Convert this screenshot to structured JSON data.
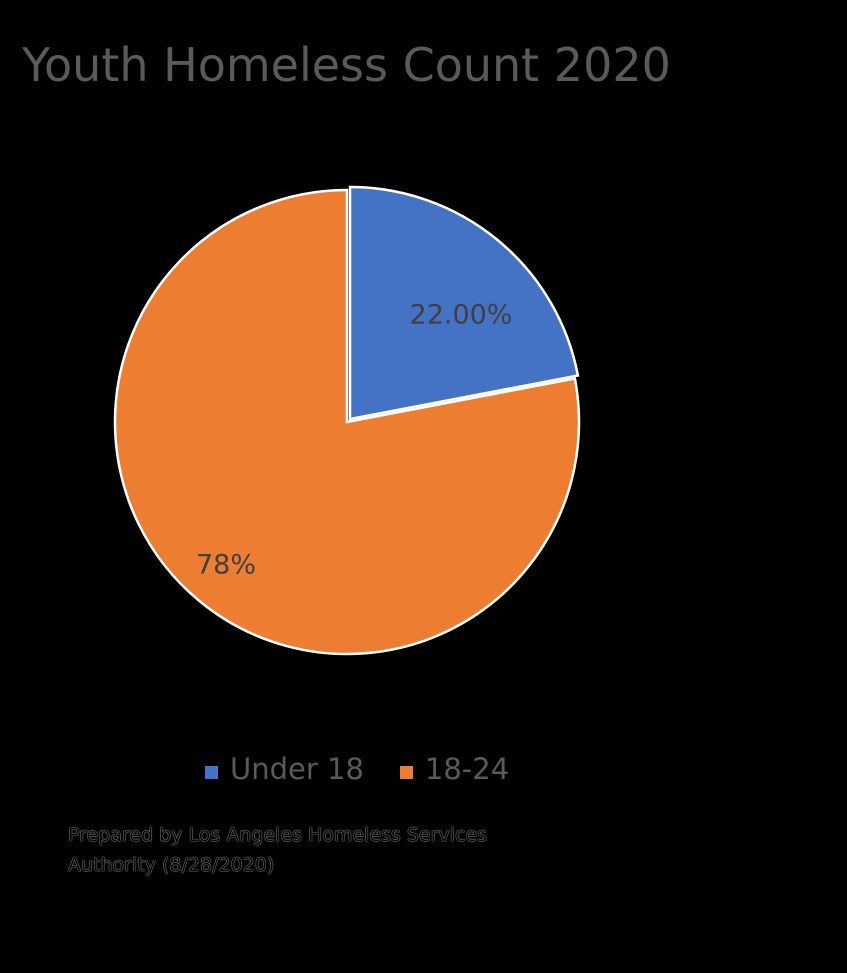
{
  "title": "Youth Homeless Count 2020",
  "chart_data": {
    "type": "pie",
    "categories": [
      "Under 18",
      "18-24"
    ],
    "values": [
      22.0,
      78.0
    ],
    "data_labels": [
      "22.00%",
      "78%"
    ],
    "colors": [
      "#4472C4",
      "#ED7D31"
    ],
    "legend_placement": "bottom",
    "title": "Youth Homeless Count 2020"
  },
  "legend": {
    "items": [
      {
        "label": "Under 18",
        "color": "#4472C4"
      },
      {
        "label": "18-24",
        "color": "#ED7D31"
      }
    ]
  },
  "footnote": "Prepared by Los Angeles Homeless Services Authority (8/28/2020)"
}
